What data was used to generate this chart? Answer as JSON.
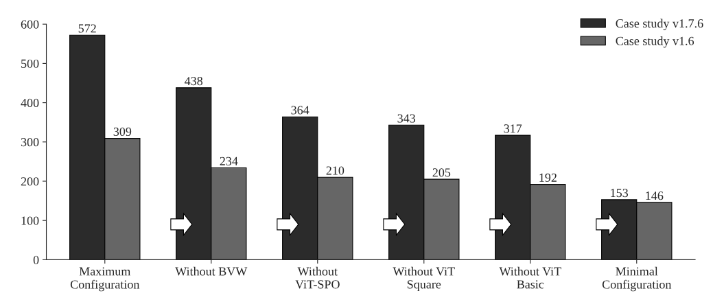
{
  "chart_data": {
    "type": "bar",
    "categories": [
      "Maximum\nConfiguration",
      "Without BVW",
      "Without\nViT-SPO",
      "Without ViT\nSquare",
      "Without ViT\nBasic",
      "Minimal\nConfiguration"
    ],
    "series": [
      {
        "name": "Case study v1.7.6",
        "color": "#2b2b2b",
        "values": [
          572,
          438,
          364,
          343,
          317,
          153
        ]
      },
      {
        "name": "Case study v1.6",
        "color": "#666666",
        "values": [
          309,
          234,
          210,
          205,
          192,
          146
        ]
      }
    ],
    "ylim": [
      0,
      600
    ],
    "yticks": [
      0,
      100,
      200,
      300,
      400,
      500,
      600
    ],
    "data_labels": true,
    "grid": false,
    "legend": "top right"
  }
}
